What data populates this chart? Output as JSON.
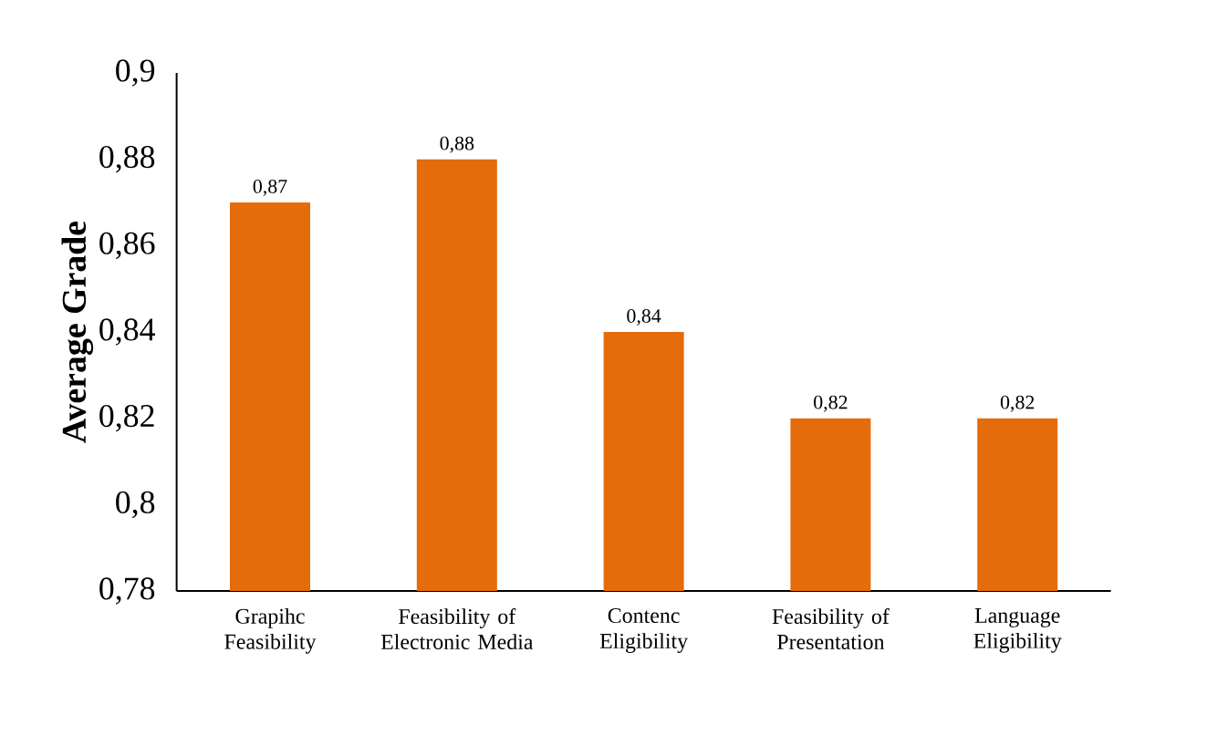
{
  "chart_data": {
    "type": "bar",
    "ylabel": "Average Grade",
    "categories": [
      "Grapihc Feasibility",
      "Feasibility of Electronic Media",
      "Contenc Eligibility",
      "Feasibility of Presentation",
      "Language Eligibility"
    ],
    "values": [
      0.87,
      0.88,
      0.84,
      0.82,
      0.82
    ],
    "value_labels": [
      "0,87",
      "0,88",
      "0,84",
      "0,82",
      "0,82"
    ],
    "color": "#e46c0a",
    "ylim": [
      0.78,
      0.9
    ],
    "yticks": [
      {
        "value": 0.78,
        "label": "0,78"
      },
      {
        "value": 0.8,
        "label": "0,8"
      },
      {
        "value": 0.82,
        "label": "0,82"
      },
      {
        "value": 0.84,
        "label": "0,84"
      },
      {
        "value": 0.86,
        "label": "0,86"
      },
      {
        "value": 0.88,
        "label": "0,88"
      },
      {
        "value": 0.9,
        "label": "0,9"
      }
    ],
    "grid": false
  }
}
